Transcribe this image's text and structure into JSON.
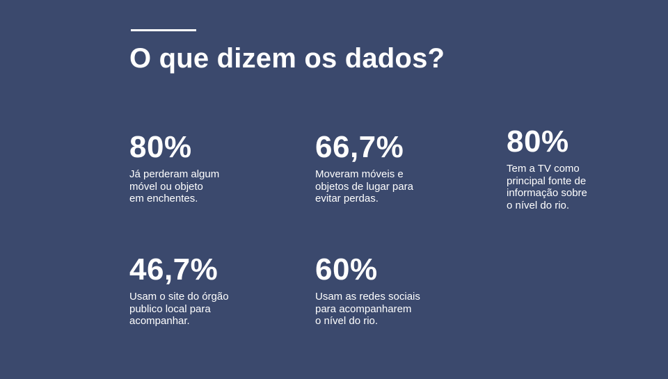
{
  "title": "O que dizem os dados?",
  "stats": [
    {
      "value": "80%",
      "lines": [
        "Já perderam algum",
        "móvel ou objeto",
        "em enchentes."
      ]
    },
    {
      "value": "66,7%",
      "lines": [
        "Moveram móveis e",
        "objetos de lugar para",
        "evitar perdas."
      ]
    },
    {
      "value": "80%",
      "lines": [
        "Tem a TV como",
        "principal fonte de",
        "informação sobre",
        "o nível do rio."
      ]
    },
    {
      "value": "46,7%",
      "lines": [
        "Usam o site do órgão",
        "publico local para",
        "acompanhar."
      ]
    },
    {
      "value": "60%",
      "lines": [
        "Usam as redes sociais",
        "para acompanharem",
        "o nível do rio."
      ]
    }
  ]
}
